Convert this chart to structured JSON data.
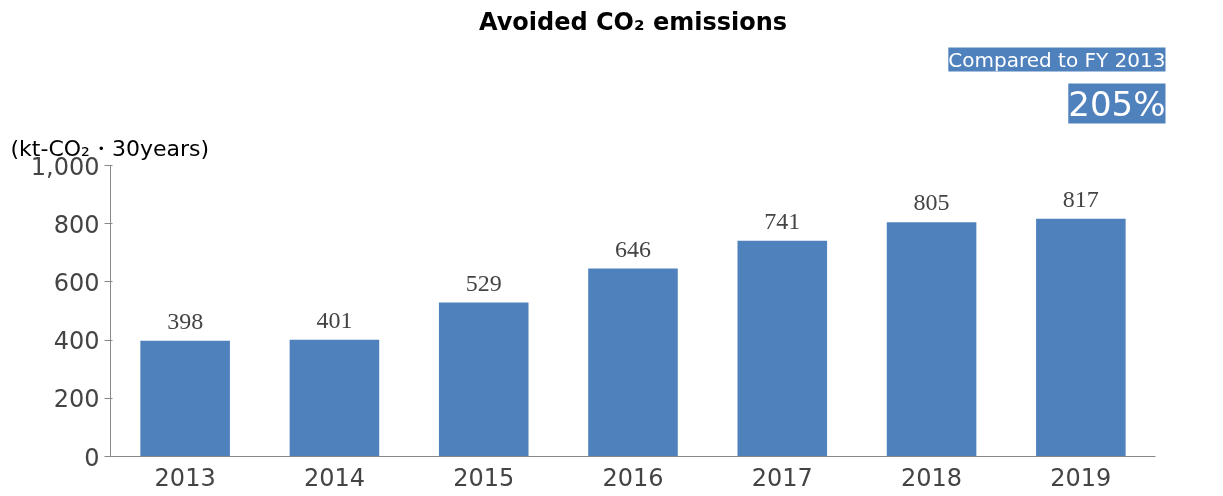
{
  "chart_data": {
    "type": "bar",
    "title": "Avoided CO₂ emissions",
    "ylabel": "(kt-CO₂・30years)",
    "categories": [
      "2013",
      "2014",
      "2015",
      "2016",
      "2017",
      "2018",
      "2019"
    ],
    "values": [
      398,
      401,
      529,
      646,
      741,
      805,
      817
    ],
    "color": "#4f81bd",
    "ylim": [
      0,
      1000
    ],
    "yticks": [
      0,
      200,
      400,
      600,
      800,
      {
        "value": 1000,
        "label": "1,000"
      }
    ],
    "grid": false,
    "data_labels": true,
    "annotations": [
      "205%",
      "Compared to FY 2013"
    ]
  }
}
